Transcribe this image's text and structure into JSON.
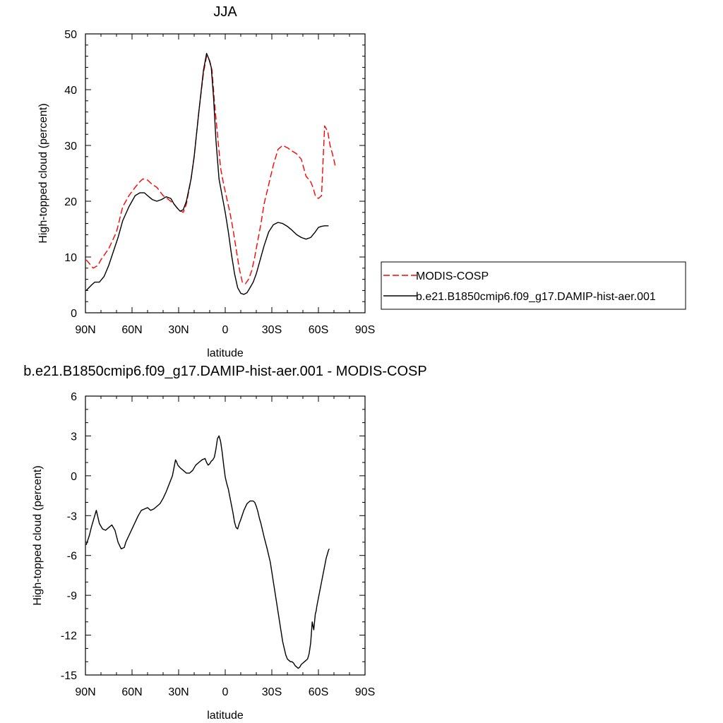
{
  "chart_data": [
    {
      "type": "line",
      "title": "JJA",
      "xlabel": "latitude",
      "ylabel": "High-topped cloud (percent)",
      "xlim": [
        90,
        -90
      ],
      "ylim": [
        0,
        50
      ],
      "xticks": [
        90,
        60,
        30,
        0,
        -30,
        -60,
        -90
      ],
      "xtick_labels": [
        "90N",
        "60N",
        "30N",
        "0",
        "30S",
        "60S",
        "90S"
      ],
      "yticks": [
        0,
        10,
        20,
        30,
        40,
        50
      ],
      "ytick_labels": [
        "0",
        "10",
        "20",
        "30",
        "40",
        "50"
      ],
      "grid": false,
      "legend_position": "right, outside plot",
      "series": [
        {
          "name": "MODIS-COSP",
          "color": "#ff0000",
          "dash": "dashed",
          "x": [
            89.5,
            85,
            82,
            80,
            75,
            70,
            66,
            62,
            58,
            55,
            53,
            50,
            47,
            44,
            40,
            36,
            33,
            30,
            27,
            25,
            22,
            20,
            17,
            14,
            12,
            10,
            8.5,
            7,
            5,
            3,
            1,
            -1,
            -3,
            -5,
            -7,
            -9,
            -11,
            -13,
            -15,
            -17,
            -19,
            -21,
            -23,
            -25,
            -28,
            -31,
            -34,
            -37,
            -40,
            -43,
            -46,
            -49,
            -52,
            -55,
            -56.5,
            -58,
            -60,
            -62,
            -64,
            -66,
            -67.5,
            -68.5,
            -69.5,
            -70.3,
            -71
          ],
          "y": [
            9.5,
            8.0,
            8.5,
            9.5,
            11.5,
            14.5,
            19.0,
            21.0,
            22.5,
            23.5,
            24.0,
            23.8,
            23.0,
            22.5,
            21.0,
            20.2,
            19.5,
            18.5,
            18.0,
            19.5,
            24.0,
            28.0,
            36.0,
            43.0,
            46.0,
            45.2,
            43.5,
            38.0,
            32.0,
            26.0,
            23.0,
            20.5,
            18.0,
            15.0,
            11.5,
            8.0,
            5.5,
            5.2,
            6.0,
            7.5,
            10.0,
            13.0,
            16.0,
            19.5,
            23.0,
            26.5,
            29.3,
            30.0,
            29.6,
            29.0,
            28.5,
            27.5,
            24.5,
            23.5,
            22.5,
            21.0,
            20.5,
            21.0,
            33.5,
            32.5,
            30.0,
            29.0,
            28.0,
            27.0,
            26.0
          ]
        },
        {
          "name": "b.e21.B1850cmip6.f09_g17.DAMIP-hist-aer.001",
          "color": "#000000",
          "dash": "solid",
          "x": [
            89.5,
            86,
            84,
            81,
            78,
            75,
            72,
            69,
            66,
            62,
            58,
            55,
            52,
            50,
            47,
            44,
            41,
            38,
            35,
            33,
            31,
            29,
            27,
            25,
            22,
            20,
            17,
            14,
            12,
            10.5,
            9,
            7.5,
            6,
            4,
            2,
            0,
            -2,
            -4,
            -6,
            -8,
            -10,
            -12,
            -14,
            -16,
            -18,
            -20,
            -22,
            -25,
            -28,
            -31,
            -34,
            -37,
            -40,
            -43,
            -46,
            -49,
            -52,
            -55,
            -58,
            -60,
            -62,
            -64,
            -66.5
          ],
          "y": [
            4.0,
            5.0,
            5.5,
            5.5,
            6.5,
            8.5,
            11.0,
            13.5,
            16.5,
            19.0,
            21.0,
            21.5,
            21.5,
            21.0,
            20.3,
            20.0,
            20.3,
            20.8,
            20.5,
            19.5,
            18.8,
            18.2,
            18.5,
            20.0,
            24.0,
            28.0,
            36.0,
            43.5,
            46.5,
            45.5,
            44.0,
            38.5,
            31.0,
            24.0,
            21.0,
            18.0,
            14.5,
            10.5,
            7.0,
            4.5,
            3.5,
            3.3,
            3.6,
            4.5,
            5.5,
            7.0,
            9.0,
            12.0,
            14.5,
            15.8,
            16.2,
            16.0,
            15.5,
            14.8,
            14.0,
            13.5,
            13.2,
            13.5,
            14.5,
            15.3,
            15.5,
            15.6,
            15.6
          ]
        }
      ]
    },
    {
      "type": "line",
      "title": "b.e21.B1850cmip6.f09_g17.DAMIP-hist-aer.001 - MODIS-COSP",
      "xlabel": "latitude",
      "ylabel": "High-topped cloud (percent)",
      "xlim": [
        90,
        -90
      ],
      "ylim": [
        -15,
        6
      ],
      "xticks": [
        90,
        60,
        30,
        0,
        -30,
        -60,
        -90
      ],
      "xtick_labels": [
        "90N",
        "60N",
        "30N",
        "0",
        "30S",
        "60S",
        "90S"
      ],
      "yticks": [
        -15,
        -12,
        -9,
        -6,
        -3,
        0,
        3,
        6
      ],
      "ytick_labels": [
        "-15",
        "-12",
        "-9",
        "-6",
        "-3",
        "0",
        "3",
        "6"
      ],
      "grid": false,
      "series": [
        {
          "name": "",
          "color": "#000000",
          "dash": "solid",
          "x": [
            89.5,
            87.5,
            86,
            84.5,
            83,
            81,
            79,
            77,
            75,
            73,
            71,
            69,
            67,
            65,
            64,
            62,
            60,
            58,
            56,
            54,
            52,
            50,
            48,
            46,
            44,
            42,
            40,
            38,
            36,
            34,
            33,
            32,
            31.5,
            30.5,
            29,
            27,
            25,
            23,
            21,
            19,
            17,
            15,
            13,
            12,
            11,
            10,
            9,
            8,
            7,
            6,
            5.5,
            5,
            4,
            3,
            2,
            1,
            0,
            -1,
            -2,
            -3,
            -4,
            -5,
            -6,
            -7,
            -8,
            -9,
            -10,
            -12,
            -14,
            -16,
            -18,
            -19,
            -20,
            -21,
            -22,
            -23,
            -24,
            -25,
            -27,
            -29,
            -31,
            -33,
            -35,
            -37,
            -39,
            -40,
            -41,
            -42,
            -43,
            -44,
            -45,
            -46,
            -47,
            -48,
            -49,
            -50,
            -51,
            -52,
            -53,
            -54,
            -55,
            -56,
            -57,
            -57.5,
            -58,
            -58.5,
            -59,
            -60,
            -61,
            -62,
            -63,
            -64,
            -65,
            -66,
            -66.5,
            -67
          ],
          "y": [
            -5.2,
            -4.5,
            -3.8,
            -3.2,
            -2.6,
            -3.6,
            -4.0,
            -4.1,
            -3.9,
            -3.7,
            -4.1,
            -5.0,
            -5.5,
            -5.4,
            -5.0,
            -4.5,
            -4.0,
            -3.5,
            -3.0,
            -2.6,
            -2.5,
            -2.4,
            -2.6,
            -2.5,
            -2.3,
            -2.1,
            -1.7,
            -1.2,
            -0.6,
            0.0,
            0.6,
            1.2,
            1.1,
            0.8,
            0.6,
            0.4,
            0.2,
            0.2,
            0.4,
            0.8,
            1.0,
            1.2,
            1.3,
            1.0,
            0.8,
            0.9,
            1.1,
            1.2,
            1.4,
            2.0,
            2.4,
            2.8,
            3.0,
            2.6,
            1.8,
            0.8,
            -0.1,
            -0.6,
            -1.0,
            -1.6,
            -2.2,
            -2.8,
            -3.5,
            -3.9,
            -4.0,
            -3.6,
            -3.3,
            -2.6,
            -2.1,
            -1.9,
            -1.9,
            -2.0,
            -2.3,
            -2.7,
            -3.2,
            -3.6,
            -4.1,
            -4.6,
            -5.5,
            -6.5,
            -8.0,
            -9.5,
            -11.0,
            -12.5,
            -13.5,
            -13.8,
            -13.9,
            -14.0,
            -14.0,
            -14.1,
            -14.3,
            -14.4,
            -14.5,
            -14.4,
            -14.2,
            -14.1,
            -14.0,
            -13.9,
            -13.8,
            -13.4,
            -12.6,
            -11.0,
            -11.6,
            -11.0,
            -10.4,
            -10.2,
            -9.8,
            -9.2,
            -8.6,
            -8.0,
            -7.4,
            -6.8,
            -6.2,
            -5.8,
            -5.6,
            -5.5
          ]
        }
      ]
    }
  ]
}
